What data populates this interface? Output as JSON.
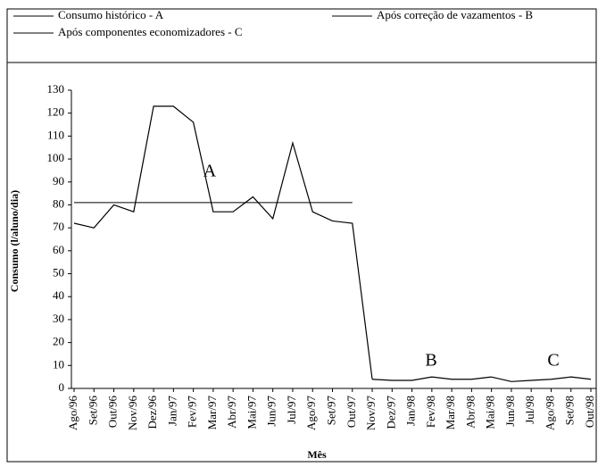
{
  "chart_data": {
    "type": "line",
    "ylabel": "Consumo (l/aluno/dia)",
    "xlabel": "Mês",
    "categories": [
      "Ago/96",
      "Set/96",
      "Out/96",
      "Nov/96",
      "Dez/96",
      "Jan/97",
      "Fev/97",
      "Mar/97",
      "Abr/97",
      "Mai/97",
      "Jun/97",
      "Jul/97",
      "Ago/97",
      "Set/97",
      "Out/97",
      "Nov/97",
      "Dez/97",
      "Jan/98",
      "Fev/98",
      "Mar/98",
      "Abr/98",
      "Mai/98",
      "Jun/98",
      "Jul/98",
      "Ago/98",
      "Set/98",
      "Out/98"
    ],
    "series": [
      {
        "name": "Consumo histórico - A",
        "color": "#000000",
        "values": [
          72,
          70,
          80,
          77,
          123,
          123,
          116,
          77,
          77,
          83.5,
          74,
          107,
          77,
          73,
          72,
          4,
          null,
          null,
          null,
          null,
          null,
          null,
          null,
          null,
          null,
          null,
          null
        ]
      },
      {
        "name": "Após correção de vazamentos - B",
        "color": "#000000",
        "values": [
          null,
          null,
          null,
          null,
          null,
          null,
          null,
          null,
          null,
          null,
          null,
          null,
          null,
          null,
          null,
          4,
          3.5,
          3.5,
          5,
          4,
          4,
          5,
          null,
          null,
          null,
          null,
          null
        ]
      },
      {
        "name": "Após componentes economizadores - C",
        "color": "#000000",
        "values": [
          null,
          null,
          null,
          null,
          null,
          null,
          null,
          null,
          null,
          null,
          null,
          null,
          null,
          null,
          null,
          null,
          null,
          null,
          null,
          null,
          null,
          5,
          3,
          3.5,
          4,
          5,
          4
        ]
      }
    ],
    "mean_line": {
      "value": 81,
      "from": 0,
      "to": 14
    },
    "annotations": [
      "A",
      "B",
      "C"
    ],
    "ylim": [
      0,
      130
    ],
    "yticks": [
      0,
      10,
      20,
      30,
      40,
      50,
      60,
      70,
      80,
      90,
      100,
      110,
      120,
      130
    ],
    "legend": "top",
    "grid": false
  }
}
